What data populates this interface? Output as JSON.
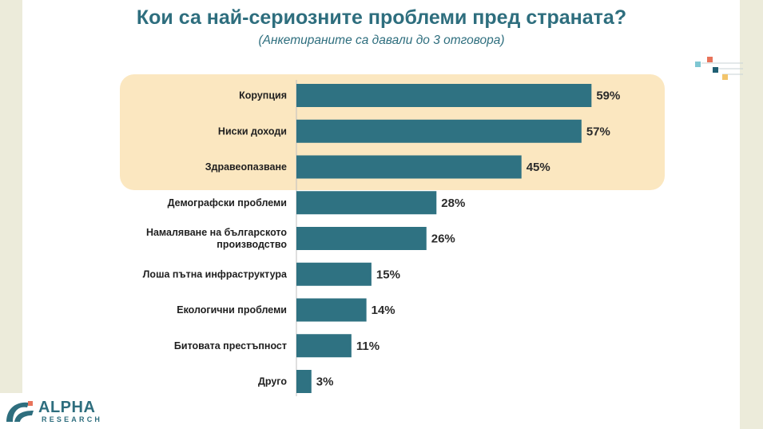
{
  "title": "Кои са най-сериозните проблеми пред страната?",
  "subtitle": "(Анкетираните са давали до 3 отговора)",
  "logo": {
    "name": "ALPHA",
    "sub": "RESEARCH"
  },
  "colors": {
    "bar": "#2f7282",
    "highlight": "#fbe7c0",
    "title": "#2e6e7e"
  },
  "chart_data": {
    "type": "bar",
    "orientation": "horizontal",
    "categories": [
      "Корупция",
      "Ниски доходи",
      "Здравеопазване",
      "Демографски проблеми",
      "Намаляване на българското производство",
      "Лоша пътна инфраструктура",
      "Екологични проблеми",
      "Битовата престъпност",
      "Друго"
    ],
    "category_lines": [
      [
        "Корупция"
      ],
      [
        "Ниски доходи"
      ],
      [
        "Здравеопазване"
      ],
      [
        "Демографски проблеми"
      ],
      [
        "Намаляване на българското",
        "производство"
      ],
      [
        "Лоша пътна инфраструктура"
      ],
      [
        "Екологични проблеми"
      ],
      [
        "Битовата престъпност"
      ],
      [
        "Друго"
      ]
    ],
    "values": [
      59,
      57,
      45,
      28,
      26,
      15,
      14,
      11,
      3
    ],
    "value_labels": [
      "59%",
      "57%",
      "45%",
      "28%",
      "26%",
      "15%",
      "14%",
      "11%",
      "3%"
    ],
    "highlighted_categories": [
      "Корупция",
      "Ниски доходи",
      "Здравеопазване"
    ],
    "unit": "%",
    "xlim": [
      0,
      100
    ],
    "grid": false,
    "legend": "none"
  }
}
